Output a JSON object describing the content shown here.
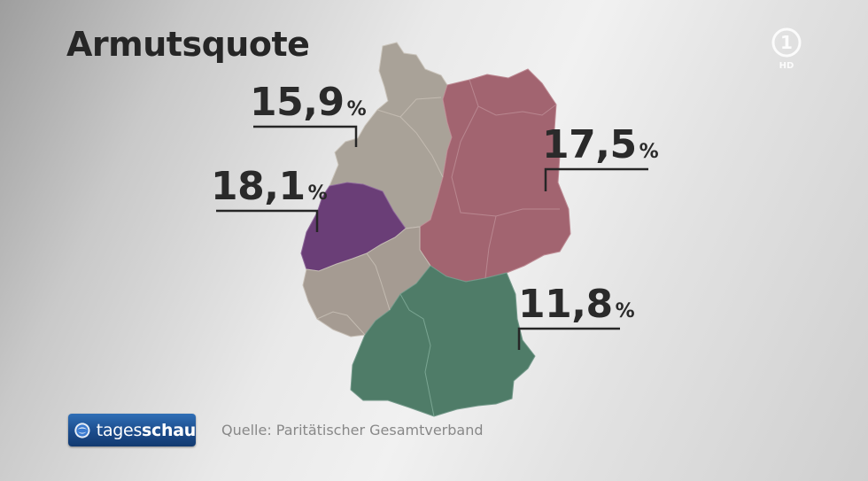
{
  "title": "Armutsquote",
  "colors": {
    "north_west": "#a9a298",
    "north_rhine_westphalia": "#6a3e77",
    "east": "#a26470",
    "south": "#4f7c68",
    "west_south": "#a59b92",
    "leader": "#262626"
  },
  "regions": [
    {
      "key": "north",
      "value": "15,9",
      "unit": "%"
    },
    {
      "key": "east",
      "value": "17,5",
      "unit": "%"
    },
    {
      "key": "nrw",
      "value": "18,1",
      "unit": "%"
    },
    {
      "key": "south",
      "value": "11,8",
      "unit": "%"
    }
  ],
  "brand": {
    "prefix": "tages",
    "suffix": "schau"
  },
  "channel_logo": {
    "number": "1",
    "badge": "HD"
  },
  "source": "Quelle: Paritätischer Gesamtverband"
}
